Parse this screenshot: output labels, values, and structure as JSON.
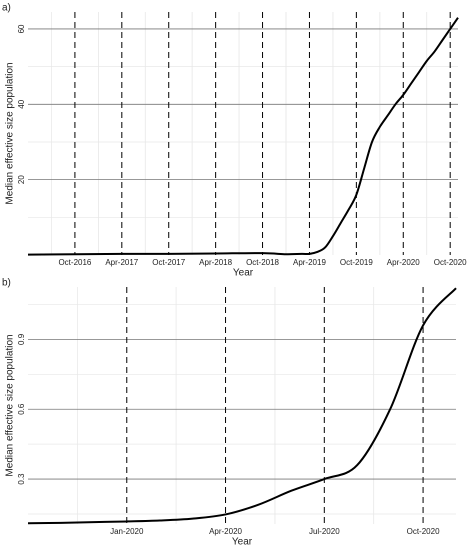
{
  "chart_data": [
    {
      "type": "line",
      "panel_label": "a)",
      "x_label": "Year",
      "y_label": "Median effective size population",
      "x": [
        "2016-04",
        "2016-10",
        "2017-04",
        "2017-10",
        "2018-04",
        "2018-10",
        "2019-01",
        "2019-03",
        "2019-04",
        "2019-05",
        "2019-06",
        "2019-07",
        "2019-08",
        "2019-09",
        "2019-10",
        "2019-11",
        "2019-12",
        "2020-01",
        "2020-02",
        "2020-03",
        "2020-04",
        "2020-05",
        "2020-06",
        "2020-07",
        "2020-08",
        "2020-09",
        "2020-10",
        "2020-11"
      ],
      "series": [
        {
          "color": "#000000",
          "values": [
            0.1,
            0.2,
            0.3,
            0.3,
            0.4,
            0.5,
            0.2,
            0.3,
            0.3,
            0.8,
            2,
            5,
            8.5,
            12,
            16,
            23,
            30,
            34,
            37,
            40,
            42.5,
            45.5,
            48.5,
            51.5,
            54,
            57,
            60,
            63
          ]
        }
      ],
      "xlim": [
        "2016-04",
        "2020-11"
      ],
      "xticks": [
        {
          "value": "2016-10",
          "label": "Oct-2016"
        },
        {
          "value": "2017-04",
          "label": "Apr-2017"
        },
        {
          "value": "2017-10",
          "label": "Oct-2017"
        },
        {
          "value": "2018-04",
          "label": "Apr-2018"
        },
        {
          "value": "2018-10",
          "label": "Oct-2018"
        },
        {
          "value": "2019-04",
          "label": "Apr-2019"
        },
        {
          "value": "2019-10",
          "label": "Oct-2019"
        },
        {
          "value": "2020-04",
          "label": "Apr-2020"
        },
        {
          "value": "2020-10",
          "label": "Oct-2020"
        }
      ],
      "ylim": [
        0,
        64.5
      ],
      "yticks": [
        20,
        40,
        60
      ],
      "grid": true,
      "xtick_line_style": "dashed"
    },
    {
      "type": "line",
      "panel_label": "b)",
      "x_label": "Year",
      "y_label": "Median effective size population",
      "x": [
        "2019-10",
        "2019-11",
        "2019-12",
        "2020-01",
        "2020-02",
        "2020-03",
        "2020-04",
        "2020-05",
        "2020-06",
        "2020-07",
        "2020-08",
        "2020-09",
        "2020-10",
        "2020-11"
      ],
      "series": [
        {
          "color": "#000000",
          "values": [
            0.11,
            0.112,
            0.115,
            0.118,
            0.122,
            0.13,
            0.148,
            0.19,
            0.25,
            0.3,
            0.36,
            0.6,
            0.96,
            1.12
          ]
        }
      ],
      "xlim": [
        "2019-10",
        "2020-11"
      ],
      "xticks": [
        {
          "value": "2020-01",
          "label": "Jan-2020"
        },
        {
          "value": "2020-04",
          "label": "Apr-2020"
        },
        {
          "value": "2020-07",
          "label": "Jul-2020"
        },
        {
          "value": "2020-10",
          "label": "Oct-2020"
        }
      ],
      "ylim": [
        0.107,
        1.125
      ],
      "yticks": [
        0.3,
        0.6,
        0.9
      ],
      "grid": true,
      "xtick_line_style": "dashed"
    }
  ]
}
